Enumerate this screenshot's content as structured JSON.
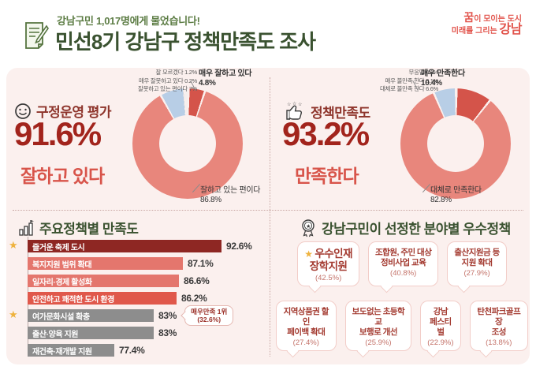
{
  "header": {
    "badge": "강남구민 1,017명에게 물었습니다!",
    "title": "민선8기 강남구 정책만족도 조사",
    "logo": {
      "line1_accent": "꿈",
      "line1_rest": "이 모이는 도시",
      "line2_rest": "미래를 그리는 ",
      "line2_accent": "강남"
    }
  },
  "gov_eval": {
    "section_title": "구정운영 평가",
    "headline_value": "91.6%",
    "headline_label": "잘하고 있다",
    "side_labels": [
      "잘 모르겠다 1.2%",
      "매우 잘못하고 있다 0.2%",
      "잘못하고 있는 편이다 7%"
    ],
    "callout_label": "매우 잘하고 있다",
    "callout_value": "4.8%",
    "bottom_label": "잘하고 있는 편이다",
    "bottom_value": "86.8%"
  },
  "policy_sat": {
    "section_title": "정책만족도",
    "headline_value": "93.2%",
    "headline_label": "만족한다",
    "side_labels": [
      "무응답 0.1%",
      "매우 불만족 한다 0.1%",
      "대체로 불만족 한다 6.6%"
    ],
    "callout_label": "매우 만족한다",
    "callout_value": "10.4%",
    "bottom_label": "대체로 만족한다",
    "bottom_value": "82.8%"
  },
  "policy_bars": {
    "section_title": "주요정책별 만족도",
    "rows": [
      {
        "label": "즐거운 축제 도시",
        "value": "92.6%",
        "pct": 92.6,
        "color": "#8e2723",
        "star": true
      },
      {
        "label": "복지지원 범위 확대",
        "value": "87.1%",
        "pct": 87.1,
        "color": "#e4766d",
        "star": false
      },
      {
        "label": "일자리·경제 활성화",
        "value": "86.6%",
        "pct": 86.6,
        "color": "#e4766d",
        "star": false
      },
      {
        "label": "안전하고 쾌적한 도시 환경",
        "value": "86.2%",
        "pct": 86.2,
        "color": "#e0584b",
        "star": false
      },
      {
        "label": "여가문화시설 확충",
        "value": "83%",
        "pct": 83,
        "color": "#8d8d8d",
        "star": true,
        "bubble_line1": "매우만족 1위",
        "bubble_line2": "(32.6%)"
      },
      {
        "label": "출산·양육 지원",
        "value": "83%",
        "pct": 83,
        "color": "#8d8d8d",
        "star": false
      },
      {
        "label": "재건축·재개발 지원",
        "value": "77.4%",
        "pct": 77.4,
        "color": "#8d8d8d",
        "star": false
      }
    ]
  },
  "best_policies": {
    "section_title": "강남구민이 선정한 분야별 우수정책",
    "row1": [
      {
        "star": true,
        "big": true,
        "line1": "우수인재",
        "line2": "장학지원",
        "value": "(42.5%)"
      },
      {
        "line1": "조합원, 주민 대상",
        "line2": "정비사업 교육",
        "value": "(40.8%)"
      },
      {
        "line1": "출산지원금 등",
        "line2": "지원 확대",
        "value": "(27.9%)"
      }
    ],
    "row2": [
      {
        "line1": "지역상품권 할인",
        "line2": "페이백 확대",
        "value": "(27.4%)"
      },
      {
        "line1": "보도없는 초등학교",
        "line2": "보행로 개선",
        "value": "(25.9%)"
      },
      {
        "line1": "강남",
        "line2": "페스티벌",
        "value": "(22.9%)"
      },
      {
        "line1": "탄천파크골프장",
        "line2": "조성",
        "value": "(13.8%)"
      }
    ]
  },
  "chart_data": [
    {
      "type": "pie",
      "donut": true,
      "title": "구정운영 평가",
      "labels": [
        "매우 잘하고 있다",
        "잘하고 있는 편이다",
        "잘못하고 있는 편이다",
        "매우 잘못하고 있다",
        "잘 모르겠다"
      ],
      "values": [
        4.8,
        86.8,
        7.0,
        0.2,
        1.2
      ],
      "colors": [
        "#d4544a",
        "#e8867c",
        "#b8cee6",
        "#d9d9d9",
        "#f4efee"
      ],
      "summary": "잘하고 있다 91.6%"
    },
    {
      "type": "pie",
      "donut": true,
      "title": "정책만족도",
      "labels": [
        "매우 만족한다",
        "대체로 만족한다",
        "대체로 불만족 한다",
        "매우 불만족 한다",
        "무응답"
      ],
      "values": [
        10.4,
        82.8,
        6.6,
        0.1,
        0.1
      ],
      "colors": [
        "#d4544a",
        "#e8867c",
        "#b8cee6",
        "#d9d9d9",
        "#f4efee"
      ],
      "summary": "만족한다 93.2%"
    },
    {
      "type": "bar",
      "title": "주요정책별 만족도",
      "categories": [
        "즐거운 축제 도시",
        "복지지원 범위 확대",
        "일자리·경제 활성화",
        "안전하고 쾌적한 도시 환경",
        "여가문화시설 확충",
        "출산·양육 지원",
        "재건축·재개발 지원"
      ],
      "values": [
        92.6,
        87.1,
        86.6,
        86.2,
        83,
        83,
        77.4
      ],
      "xlabel": "",
      "ylabel": "",
      "xlim": [
        65,
        95
      ],
      "annotation": "여가문화시설 확충 — 매우만족 1위 (32.6%)"
    }
  ],
  "colors": {
    "accent_green": "#3a5230",
    "badge_green": "#5d7d45",
    "maroon": "#a2241c",
    "light_red": "#d8544a",
    "salmon": "#e8867c",
    "strong_red": "#d4544a",
    "light_blue": "#b8cee6",
    "panel_pink": "#fbf0ee",
    "logo_coral": "#e2554d"
  }
}
